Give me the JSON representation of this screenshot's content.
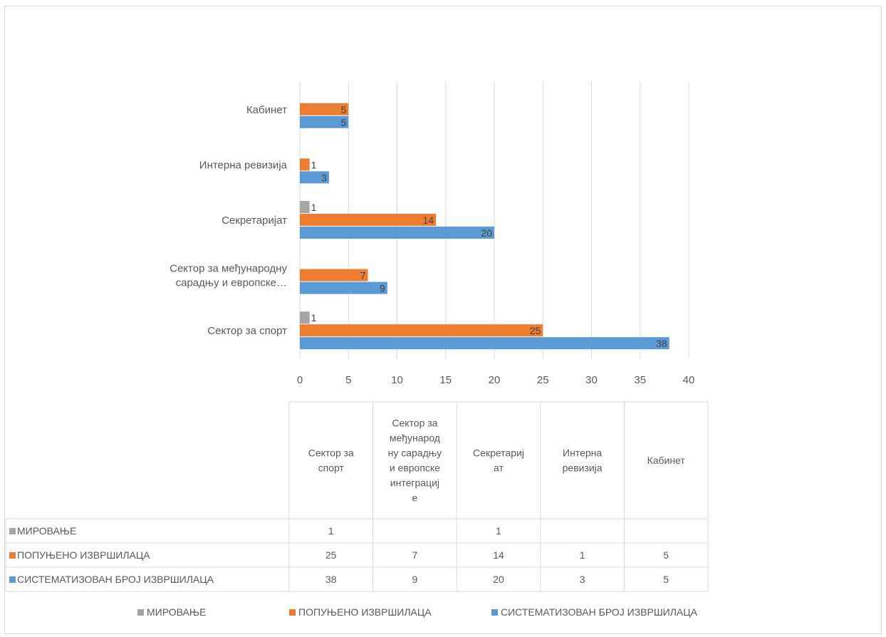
{
  "chart_data": {
    "type": "bar",
    "orientation": "horizontal",
    "categories": [
      "Сектор за спорт",
      "Сектор за међународну сарадњу и европске интеграције",
      "Секретаријат",
      "Интерна ревизија",
      "Кабинет"
    ],
    "axis_category_labels": [
      [
        "Сектор за спорт"
      ],
      [
        "Сектор за међународну",
        "сарадњу и европске…"
      ],
      [
        "Секретаријат"
      ],
      [
        "Интерна ревизија"
      ],
      [
        "Кабинет"
      ]
    ],
    "table_header_labels": [
      [
        "Сектор за",
        "спорт"
      ],
      [
        "Сектор за",
        "међународ",
        "ну сарадњу",
        "и европске",
        "интеграциј",
        "е"
      ],
      [
        "Секретариј",
        "ат"
      ],
      [
        "Интерна",
        "ревизија"
      ],
      [
        "Кабинет"
      ]
    ],
    "series": [
      {
        "name": "МИРОВАЊЕ",
        "color": "#a5a5a5",
        "values": [
          1,
          null,
          1,
          null,
          null
        ]
      },
      {
        "name": "ПОПУЊЕНО ИЗВРШИЛАЦА",
        "color": "#ed7d31",
        "values": [
          25,
          7,
          14,
          1,
          5
        ]
      },
      {
        "name": "СИСТЕМАТИЗОВАН БРОЈ ИЗВРШИЛАЦА",
        "color": "#5b9bd5",
        "values": [
          38,
          9,
          20,
          3,
          5
        ]
      }
    ],
    "xlim": [
      0,
      40
    ],
    "x_ticks": [
      0,
      5,
      10,
      15,
      20,
      25,
      30,
      35,
      40
    ],
    "grid": true,
    "data_table": true,
    "legend_position": "bottom",
    "title": "",
    "xlabel": "",
    "ylabel": ""
  }
}
